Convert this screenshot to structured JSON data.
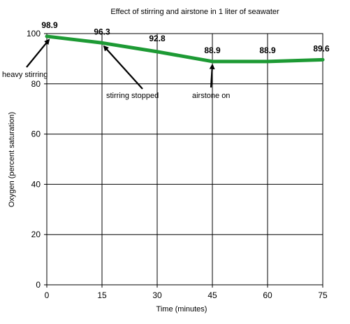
{
  "chart_data": {
    "type": "line",
    "title": "Effect of stirring and airstone in 1 liter of seawater",
    "xlabel": "Time  (minutes)",
    "ylabel": "Oxygen (percent saturation)",
    "xlim": [
      0,
      75
    ],
    "ylim": [
      0,
      100
    ],
    "x_ticks": [
      "0",
      "15",
      "30",
      "45",
      "60",
      "75"
    ],
    "y_ticks": [
      "0",
      "20",
      "40",
      "60",
      "80",
      "100"
    ],
    "grid": true,
    "legend": "none",
    "series": [
      {
        "x": [
          0,
          15,
          30,
          45,
          60,
          75
        ],
        "values": [
          98.9,
          96.3,
          92.8,
          88.9,
          88.9,
          89.6
        ],
        "labels": [
          "98.9",
          "96.3",
          "92.8",
          "88.9",
          "88.9",
          "89.6"
        ],
        "color": "#1d9a34"
      }
    ],
    "annotations": [
      {
        "text": "heavy stirring",
        "x": 0,
        "y": 98.9
      },
      {
        "text": "stirring stopped",
        "x": 15,
        "y": 96.3
      },
      {
        "text": "airstone on",
        "x": 45,
        "y": 88.9
      }
    ]
  }
}
